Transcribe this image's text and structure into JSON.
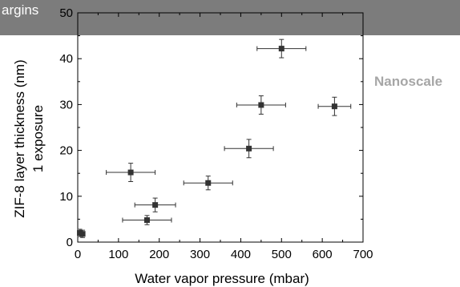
{
  "banner": {
    "text": "argins"
  },
  "side_label": "Nanoscale",
  "colors": {
    "banner": "#7c7c7c",
    "marker": "#333333",
    "side_label": "#a6a6a6"
  },
  "chart_data": {
    "type": "scatter",
    "title": "",
    "xlabel": "Water vapor pressure (mbar)",
    "ylabel_lines": [
      "ZIF-8 layer thickness (nm)",
      "1 exposure"
    ],
    "xlim": [
      0,
      700
    ],
    "ylim": [
      0,
      50
    ],
    "x_ticks": [
      0,
      100,
      200,
      300,
      400,
      500,
      600,
      700
    ],
    "y_ticks": [
      0,
      10,
      20,
      30,
      40,
      50
    ],
    "grid": false,
    "error_bars": true,
    "points": [
      {
        "x": 5,
        "y": 2,
        "xerr": 4,
        "yerr": 0.8
      },
      {
        "x": 12,
        "y": 1.8,
        "xerr": 4,
        "yerr": 0.8
      },
      {
        "x": 130,
        "y": 15.2,
        "xerr": 60,
        "yerr": 2
      },
      {
        "x": 170,
        "y": 4.8,
        "xerr": 60,
        "yerr": 1
      },
      {
        "x": 190,
        "y": 8.1,
        "xerr": 50,
        "yerr": 1.5
      },
      {
        "x": 320,
        "y": 12.9,
        "xerr": 60,
        "yerr": 1.5
      },
      {
        "x": 420,
        "y": 20.4,
        "xerr": 60,
        "yerr": 2
      },
      {
        "x": 450,
        "y": 29.9,
        "xerr": 60,
        "yerr": 2
      },
      {
        "x": 500,
        "y": 42.2,
        "xerr": 60,
        "yerr": 2
      },
      {
        "x": 630,
        "y": 29.6,
        "xerr": 40,
        "yerr": 2
      }
    ]
  }
}
